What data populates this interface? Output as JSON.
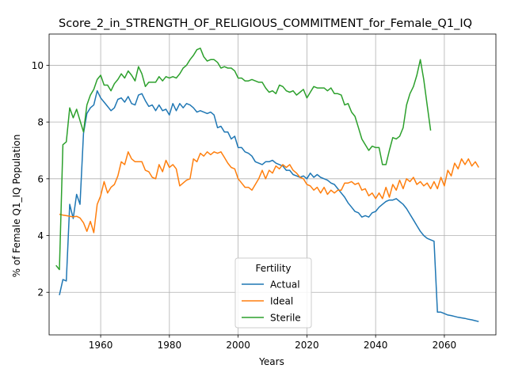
{
  "chart_data": {
    "type": "line",
    "title": "Score_2_in_STRENGTH_OF_RELIGIOUS_COMMITMENT_for_Female_Q1_IQ",
    "xlabel": "Years",
    "ylabel": "% of Female Q1_IQ Population",
    "xlim": [
      1945,
      2075
    ],
    "ylim": [
      0.5,
      11.1
    ],
    "xticks": [
      1960,
      1980,
      2000,
      2020,
      2040,
      2060
    ],
    "yticks": [
      2,
      4,
      6,
      8,
      10
    ],
    "grid": true,
    "legend": {
      "title": "Fertility",
      "location": "lower center"
    },
    "series": [
      {
        "name": "Actual",
        "color": "#1f77b4",
        "x": [
          1948,
          1949,
          1950,
          1951,
          1952,
          1953,
          1954,
          1955,
          1956,
          1957,
          1958,
          1959,
          1960,
          1961,
          1962,
          1963,
          1964,
          1965,
          1966,
          1967,
          1968,
          1969,
          1970,
          1971,
          1972,
          1973,
          1974,
          1975,
          1976,
          1977,
          1978,
          1979,
          1980,
          1981,
          1982,
          1983,
          1984,
          1985,
          1986,
          1987,
          1988,
          1989,
          1990,
          1991,
          1992,
          1993,
          1994,
          1995,
          1996,
          1997,
          1998,
          1999,
          2000,
          2001,
          2002,
          2003,
          2004,
          2005,
          2006,
          2007,
          2008,
          2009,
          2010,
          2011,
          2012,
          2013,
          2014,
          2015,
          2016,
          2017,
          2018,
          2019,
          2020,
          2021,
          2022,
          2023,
          2024,
          2025,
          2026,
          2027,
          2028,
          2029,
          2030,
          2031,
          2032,
          2033,
          2034,
          2035,
          2036,
          2037,
          2038,
          2039,
          2040,
          2041,
          2042,
          2043,
          2044,
          2045,
          2046,
          2047,
          2048,
          2049,
          2050,
          2051,
          2052,
          2053,
          2054,
          2055,
          2056,
          2057,
          2058,
          2059,
          2060,
          2061,
          2062,
          2063,
          2064,
          2065,
          2066,
          2067,
          2068,
          2069,
          2070
        ],
        "y": [
          1.9,
          2.45,
          2.4,
          5.1,
          4.6,
          5.45,
          5.1,
          7.6,
          8.3,
          8.5,
          8.6,
          9.1,
          8.85,
          8.7,
          8.55,
          8.4,
          8.5,
          8.8,
          8.85,
          8.7,
          8.9,
          8.65,
          8.6,
          8.95,
          9.0,
          8.75,
          8.55,
          8.6,
          8.4,
          8.6,
          8.4,
          8.45,
          8.25,
          8.65,
          8.4,
          8.65,
          8.5,
          8.65,
          8.6,
          8.5,
          8.35,
          8.4,
          8.35,
          8.3,
          8.35,
          8.25,
          7.8,
          7.85,
          7.65,
          7.65,
          7.4,
          7.5,
          7.1,
          7.1,
          6.95,
          6.9,
          6.8,
          6.6,
          6.55,
          6.5,
          6.6,
          6.6,
          6.65,
          6.55,
          6.5,
          6.45,
          6.3,
          6.3,
          6.15,
          6.1,
          6.05,
          6.1,
          6.0,
          6.2,
          6.05,
          6.15,
          6.05,
          6.0,
          5.95,
          5.85,
          5.8,
          5.65,
          5.5,
          5.35,
          5.15,
          5.0,
          4.85,
          4.8,
          4.65,
          4.7,
          4.65,
          4.8,
          4.85,
          5.0,
          5.1,
          5.2,
          5.25,
          5.25,
          5.3,
          5.2,
          5.1,
          4.95,
          4.75,
          4.55,
          4.35,
          4.15,
          4.0,
          3.9,
          3.85,
          3.8,
          1.3,
          1.3,
          1.25,
          1.2,
          1.18,
          1.15,
          1.12,
          1.1,
          1.08,
          1.05,
          1.03,
          1.0,
          0.97
        ]
      },
      {
        "name": "Ideal",
        "color": "#ff7f0e",
        "x": [
          1948,
          1949,
          1950,
          1951,
          1952,
          1953,
          1954,
          1955,
          1956,
          1957,
          1958,
          1959,
          1960,
          1961,
          1962,
          1963,
          1964,
          1965,
          1966,
          1967,
          1968,
          1969,
          1970,
          1971,
          1972,
          1973,
          1974,
          1975,
          1976,
          1977,
          1978,
          1979,
          1980,
          1981,
          1982,
          1983,
          1984,
          1985,
          1986,
          1987,
          1988,
          1989,
          1990,
          1991,
          1992,
          1993,
          1994,
          1995,
          1996,
          1997,
          1998,
          1999,
          2000,
          2001,
          2002,
          2003,
          2004,
          2005,
          2006,
          2007,
          2008,
          2009,
          2010,
          2011,
          2012,
          2013,
          2014,
          2015,
          2016,
          2017,
          2018,
          2019,
          2020,
          2021,
          2022,
          2023,
          2024,
          2025,
          2026,
          2027,
          2028,
          2029,
          2030,
          2031,
          2032,
          2033,
          2034,
          2035,
          2036,
          2037,
          2038,
          2039,
          2040,
          2041,
          2042,
          2043,
          2044,
          2045,
          2046,
          2047,
          2048,
          2049,
          2050,
          2051,
          2052,
          2053,
          2054,
          2055,
          2056,
          2057,
          2058,
          2059,
          2060,
          2061,
          2062,
          2063,
          2064,
          2065,
          2066,
          2067,
          2068,
          2069,
          2070
        ],
        "y": [
          4.75,
          4.72,
          4.7,
          4.68,
          4.66,
          4.68,
          4.62,
          4.45,
          4.15,
          4.5,
          4.1,
          5.1,
          5.4,
          5.9,
          5.5,
          5.7,
          5.8,
          6.1,
          6.6,
          6.5,
          6.95,
          6.7,
          6.6,
          6.6,
          6.6,
          6.3,
          6.25,
          6.05,
          6.0,
          6.5,
          6.25,
          6.65,
          6.4,
          6.5,
          6.35,
          5.75,
          5.85,
          5.95,
          6.0,
          6.7,
          6.6,
          6.9,
          6.8,
          6.95,
          6.85,
          6.95,
          6.9,
          6.95,
          6.75,
          6.55,
          6.4,
          6.35,
          6.0,
          5.85,
          5.7,
          5.7,
          5.6,
          5.8,
          6.0,
          6.3,
          6.0,
          6.3,
          6.2,
          6.45,
          6.35,
          6.5,
          6.4,
          6.5,
          6.3,
          6.2,
          6.05,
          6.0,
          5.8,
          5.75,
          5.6,
          5.7,
          5.5,
          5.7,
          5.45,
          5.6,
          5.5,
          5.6,
          5.6,
          5.85,
          5.85,
          5.9,
          5.8,
          5.85,
          5.6,
          5.65,
          5.4,
          5.5,
          5.3,
          5.5,
          5.3,
          5.7,
          5.35,
          5.8,
          5.6,
          5.95,
          5.65,
          6.0,
          5.9,
          6.05,
          5.8,
          5.9,
          5.75,
          5.85,
          5.65,
          5.9,
          5.65,
          6.05,
          5.75,
          6.3,
          6.1,
          6.55,
          6.35,
          6.7,
          6.5,
          6.7,
          6.45,
          6.6,
          6.4
        ]
      },
      {
        "name": "Sterile",
        "color": "#2ca02c",
        "x": [
          1947,
          1948,
          1949,
          1950,
          1951,
          1952,
          1953,
          1954,
          1955,
          1956,
          1957,
          1958,
          1959,
          1960,
          1961,
          1962,
          1963,
          1964,
          1965,
          1966,
          1967,
          1968,
          1969,
          1970,
          1971,
          1972,
          1973,
          1974,
          1975,
          1976,
          1977,
          1978,
          1979,
          1980,
          1981,
          1982,
          1983,
          1984,
          1985,
          1986,
          1987,
          1988,
          1989,
          1990,
          1991,
          1992,
          1993,
          1994,
          1995,
          1996,
          1997,
          1998,
          1999,
          2000,
          2001,
          2002,
          2003,
          2004,
          2005,
          2006,
          2007,
          2008,
          2009,
          2010,
          2011,
          2012,
          2013,
          2014,
          2015,
          2016,
          2017,
          2018,
          2019,
          2020,
          2021,
          2022,
          2023,
          2024,
          2025,
          2026,
          2027,
          2028,
          2029,
          2030,
          2031,
          2032,
          2033,
          2034,
          2035,
          2036,
          2037,
          2038,
          2039,
          2040,
          2041,
          2042,
          2043,
          2044,
          2045,
          2046,
          2047,
          2048,
          2049,
          2050,
          2051,
          2052,
          2053,
          2054,
          2055,
          2056
        ],
        "y": [
          2.95,
          2.8,
          7.2,
          7.3,
          8.5,
          8.15,
          8.45,
          8.05,
          7.65,
          8.6,
          8.95,
          9.15,
          9.5,
          9.65,
          9.3,
          9.3,
          9.1,
          9.35,
          9.5,
          9.7,
          9.55,
          9.8,
          9.65,
          9.45,
          9.95,
          9.7,
          9.25,
          9.4,
          9.4,
          9.4,
          9.6,
          9.45,
          9.6,
          9.55,
          9.6,
          9.55,
          9.7,
          9.9,
          10.0,
          10.2,
          10.35,
          10.55,
          10.6,
          10.3,
          10.15,
          10.2,
          10.2,
          10.1,
          9.9,
          9.95,
          9.9,
          9.9,
          9.8,
          9.55,
          9.55,
          9.45,
          9.45,
          9.5,
          9.45,
          9.4,
          9.4,
          9.2,
          9.05,
          9.1,
          9.0,
          9.3,
          9.25,
          9.1,
          9.05,
          9.1,
          8.95,
          9.05,
          9.15,
          8.85,
          9.05,
          9.25,
          9.2,
          9.2,
          9.2,
          9.1,
          9.2,
          9.0,
          9.0,
          8.95,
          8.6,
          8.65,
          8.35,
          8.2,
          7.8,
          7.4,
          7.2,
          7.0,
          7.15,
          7.1,
          7.1,
          6.5,
          6.5,
          7.0,
          7.45,
          7.4,
          7.5,
          7.8,
          8.6,
          9.0,
          9.25,
          9.65,
          10.2,
          9.5,
          8.6,
          7.7
        ]
      }
    ]
  }
}
